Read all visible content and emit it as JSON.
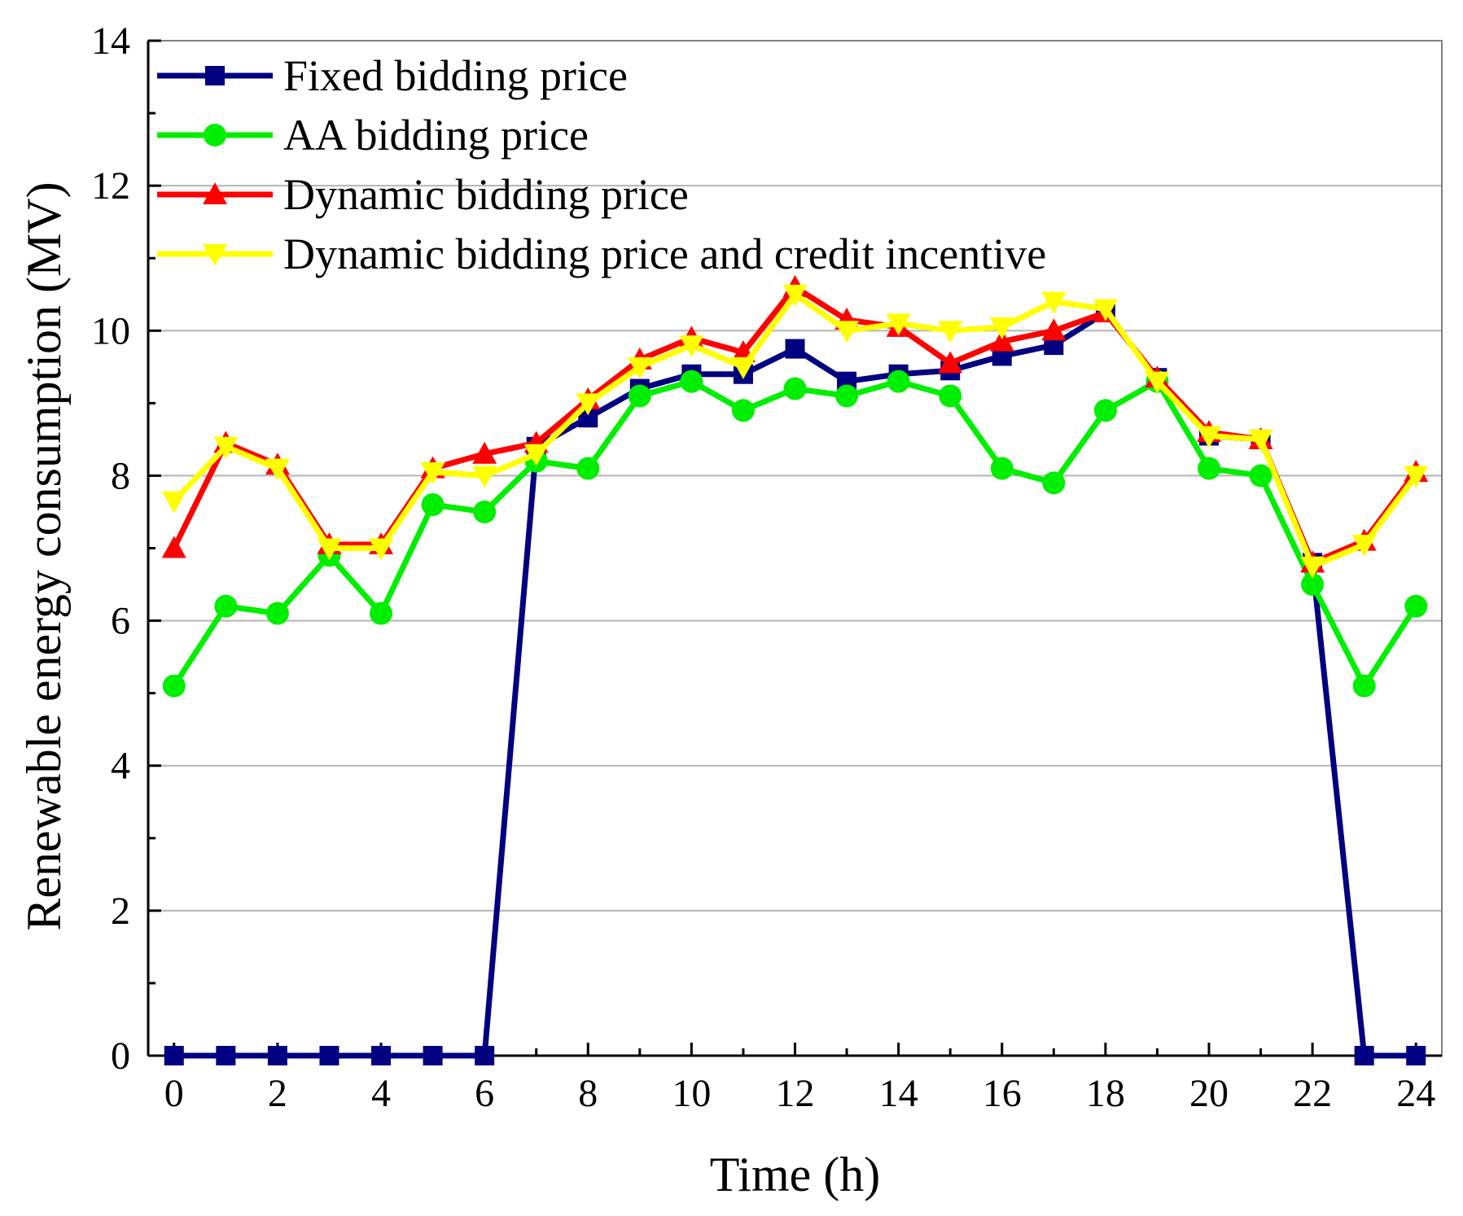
{
  "chart_data": {
    "type": "line",
    "title": "",
    "xlabel": "Time (h)",
    "ylabel": "Renewable energy consumption (MV)",
    "xlim": [
      -0.5,
      24.5
    ],
    "ylim": [
      0,
      14
    ],
    "xticks": [
      0,
      2,
      4,
      6,
      8,
      10,
      12,
      14,
      16,
      18,
      20,
      22,
      24
    ],
    "yticks": [
      0,
      2,
      4,
      6,
      8,
      10,
      12,
      14
    ],
    "grid": "horizontal",
    "legend_position": "top-left",
    "x": [
      0,
      1,
      2,
      3,
      4,
      5,
      6,
      7,
      8,
      9,
      10,
      11,
      12,
      13,
      14,
      15,
      16,
      17,
      18,
      19,
      20,
      21,
      22,
      23,
      24
    ],
    "series": [
      {
        "name": "Fixed bidding price",
        "color": "#000080",
        "marker": "square",
        "values": [
          0,
          0,
          0,
          0,
          0,
          0,
          0,
          8.4,
          8.8,
          9.2,
          9.4,
          9.4,
          9.75,
          9.3,
          9.4,
          9.45,
          9.65,
          9.8,
          10.25,
          9.35,
          8.55,
          8.5,
          6.8,
          0,
          0
        ]
      },
      {
        "name": "AA bidding price",
        "color": "#00ee00",
        "marker": "circle",
        "values": [
          5.1,
          6.2,
          6.1,
          6.9,
          6.1,
          7.6,
          7.5,
          8.2,
          8.1,
          9.1,
          9.3,
          8.9,
          9.2,
          9.1,
          9.3,
          9.1,
          8.1,
          7.9,
          8.9,
          9.3,
          8.1,
          8.0,
          6.5,
          5.1,
          6.2
        ]
      },
      {
        "name": "Dynamic bidding price",
        "color": "#ff0000",
        "marker": "triangle-up",
        "values": [
          7.0,
          8.45,
          8.15,
          7.05,
          7.05,
          8.1,
          8.3,
          8.45,
          9.05,
          9.6,
          9.9,
          9.7,
          10.6,
          10.15,
          10.05,
          9.55,
          9.85,
          10.0,
          10.25,
          9.35,
          8.6,
          8.5,
          6.8,
          7.1,
          8.05
        ]
      },
      {
        "name": "Dynamic bidding price and credit incentive",
        "color": "#ffff00",
        "marker": "triangle-down",
        "values": [
          7.65,
          8.4,
          8.1,
          7.0,
          7.0,
          8.05,
          8.0,
          8.3,
          9.0,
          9.5,
          9.8,
          9.5,
          10.5,
          10.0,
          10.1,
          10.0,
          10.05,
          10.4,
          10.3,
          9.3,
          8.55,
          8.5,
          6.75,
          7.05,
          8.0
        ]
      }
    ]
  }
}
